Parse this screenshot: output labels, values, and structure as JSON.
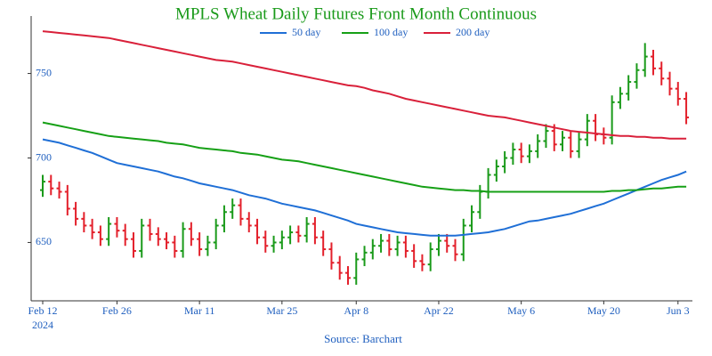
{
  "chart_data": {
    "type": "ohlc",
    "title": "MPLS Wheat Daily Futures Front Month Continuous",
    "source": "Source: Barchart",
    "year_label": "2024",
    "categories": [
      "Feb 12",
      null,
      null,
      null,
      null,
      null,
      null,
      null,
      null,
      "Feb 26",
      null,
      null,
      null,
      null,
      null,
      null,
      null,
      null,
      null,
      "Mar 11",
      null,
      null,
      null,
      null,
      null,
      null,
      null,
      null,
      null,
      "Mar 25",
      null,
      null,
      null,
      null,
      null,
      null,
      null,
      null,
      "Apr 8",
      null,
      null,
      null,
      null,
      null,
      null,
      null,
      null,
      null,
      "Apr 22",
      null,
      null,
      null,
      null,
      null,
      null,
      null,
      null,
      null,
      "May 6",
      null,
      null,
      null,
      null,
      null,
      null,
      null,
      null,
      null,
      "May 20",
      null,
      null,
      null,
      null,
      null,
      null,
      null,
      null,
      "Jun 3",
      null
    ],
    "ohlc": {
      "up_color": "#1a9a1a",
      "down_color": "#e3202b",
      "open": [
        681,
        686,
        682,
        680,
        670,
        664,
        660,
        656,
        652,
        661,
        657,
        652,
        645,
        660,
        655,
        652,
        650,
        645,
        658,
        652,
        646,
        650,
        660,
        668,
        672,
        664,
        660,
        653,
        648,
        650,
        653,
        656,
        654,
        661,
        653,
        646,
        638,
        632,
        629,
        640,
        644,
        648,
        651,
        646,
        650,
        645,
        639,
        637,
        646,
        651,
        648,
        643,
        660,
        668,
        680,
        690,
        695,
        700,
        705,
        701,
        704,
        710,
        716,
        708,
        712,
        704,
        711,
        722,
        714,
        712,
        733,
        738,
        745,
        752,
        760,
        753,
        747,
        741,
        735
      ],
      "high": [
        690,
        690,
        686,
        684,
        674,
        668,
        664,
        660,
        665,
        665,
        661,
        656,
        664,
        664,
        659,
        656,
        654,
        662,
        662,
        656,
        654,
        664,
        672,
        676,
        676,
        668,
        664,
        657,
        654,
        657,
        660,
        660,
        665,
        665,
        657,
        650,
        642,
        636,
        644,
        648,
        652,
        655,
        655,
        654,
        654,
        649,
        643,
        650,
        655,
        655,
        652,
        664,
        672,
        684,
        694,
        699,
        704,
        709,
        709,
        708,
        714,
        720,
        720,
        716,
        716,
        715,
        726,
        726,
        718,
        737,
        742,
        749,
        756,
        768,
        764,
        757,
        751,
        745,
        739
      ],
      "low": [
        677,
        678,
        676,
        666,
        660,
        656,
        652,
        648,
        648,
        653,
        648,
        641,
        641,
        651,
        648,
        646,
        641,
        641,
        648,
        642,
        642,
        646,
        656,
        664,
        660,
        656,
        649,
        644,
        644,
        646,
        649,
        650,
        650,
        649,
        642,
        634,
        628,
        625,
        625,
        636,
        640,
        644,
        642,
        642,
        641,
        635,
        633,
        633,
        642,
        644,
        639,
        639,
        656,
        664,
        676,
        686,
        691,
        696,
        697,
        697,
        700,
        706,
        704,
        704,
        700,
        700,
        707,
        710,
        708,
        708,
        729,
        734,
        741,
        748,
        749,
        743,
        737,
        731,
        720
      ],
      "close": [
        686,
        682,
        680,
        670,
        664,
        660,
        656,
        652,
        661,
        657,
        652,
        645,
        660,
        655,
        652,
        650,
        645,
        658,
        652,
        646,
        650,
        660,
        668,
        672,
        664,
        660,
        653,
        648,
        650,
        653,
        656,
        654,
        661,
        653,
        646,
        638,
        632,
        629,
        640,
        644,
        648,
        651,
        646,
        650,
        645,
        639,
        637,
        646,
        651,
        648,
        643,
        660,
        668,
        680,
        690,
        695,
        700,
        705,
        701,
        704,
        710,
        716,
        708,
        712,
        704,
        711,
        722,
        714,
        712,
        733,
        738,
        745,
        752,
        760,
        753,
        747,
        741,
        735,
        724
      ]
    },
    "overlays": [
      {
        "name": "50 day",
        "color": "#1f6fd6",
        "values": [
          711,
          710,
          709,
          707.5,
          706,
          704.5,
          703,
          701,
          699,
          697,
          696,
          695,
          694,
          693,
          692,
          690.5,
          689,
          688,
          686.5,
          685,
          684,
          683,
          682,
          681,
          679.5,
          678,
          677,
          676,
          674.5,
          673,
          672,
          671,
          670,
          669,
          667.5,
          666,
          664.5,
          663,
          661,
          660,
          659,
          658,
          657,
          656,
          655.5,
          655,
          654.5,
          654,
          654,
          654,
          654,
          654.5,
          655,
          655.5,
          656,
          657,
          658,
          659.5,
          661,
          662.5,
          663,
          664,
          665,
          666,
          667,
          668.5,
          670,
          671.5,
          673,
          675,
          677,
          679,
          681,
          683,
          685,
          687,
          688.5,
          690,
          692
        ]
      },
      {
        "name": "100 day",
        "color": "#16a016",
        "values": [
          721,
          720,
          719,
          718,
          717,
          716,
          715,
          714,
          713,
          712.5,
          712,
          711.5,
          711,
          710.5,
          710,
          709,
          708.5,
          708,
          707,
          706,
          705.5,
          705,
          704.5,
          704,
          703,
          702.5,
          702,
          701,
          700,
          699,
          698.5,
          698,
          697,
          696,
          695,
          694,
          693,
          692,
          691,
          690,
          689,
          688,
          687,
          686,
          685,
          684,
          683,
          682.5,
          682,
          681.5,
          681,
          681,
          680.5,
          680.5,
          680,
          680,
          680,
          680,
          680,
          680,
          680,
          680,
          680,
          680,
          680,
          680,
          680,
          680,
          680,
          680.5,
          680.5,
          681,
          681,
          681.5,
          682,
          682,
          682.5,
          683,
          683
        ]
      },
      {
        "name": "200 day",
        "color": "#d9203a",
        "values": [
          775,
          774.5,
          774,
          773.5,
          773,
          772.5,
          772,
          771.5,
          771,
          770,
          769,
          768,
          767,
          766,
          765,
          764,
          763,
          762,
          761,
          760,
          759,
          758,
          757.5,
          757,
          756,
          755,
          754,
          753,
          752,
          751,
          750,
          749,
          748,
          747,
          746,
          745,
          744,
          743,
          742.5,
          741.5,
          740,
          739,
          738,
          736.5,
          735,
          734,
          733,
          732,
          731,
          730,
          729,
          728,
          727,
          726,
          725,
          724.5,
          724,
          723,
          722,
          721,
          720,
          719,
          718,
          717,
          716,
          715.5,
          715,
          714.5,
          714,
          713.5,
          713,
          713,
          712.5,
          712.5,
          712,
          712,
          711.5,
          711.5,
          711.5
        ]
      }
    ],
    "ylim": [
      616,
      784
    ],
    "yticks": [
      650,
      700,
      750
    ]
  }
}
